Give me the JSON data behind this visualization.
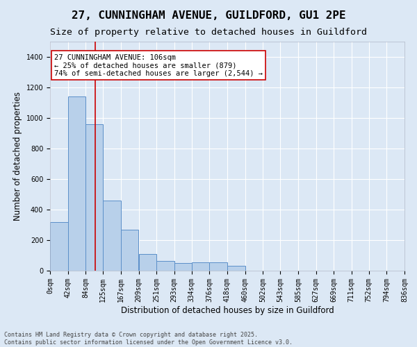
{
  "title_line1": "27, CUNNINGHAM AVENUE, GUILDFORD, GU1 2PE",
  "title_line2": "Size of property relative to detached houses in Guildford",
  "xlabel": "Distribution of detached houses by size in Guildford",
  "ylabel": "Number of detached properties",
  "bar_color": "#b8d0ea",
  "bar_edge_color": "#5b8fc9",
  "background_color": "#dce8f5",
  "grid_color": "#ffffff",
  "red_line_x": 106,
  "annotation_line1": "27 CUNNINGHAM AVENUE: 106sqm",
  "annotation_line2": "← 25% of detached houses are smaller (879)",
  "annotation_line3": "74% of semi-detached houses are larger (2,544) →",
  "annotation_box_color": "#ffffff",
  "annotation_box_edge": "#cc0000",
  "footnote1": "Contains HM Land Registry data © Crown copyright and database right 2025.",
  "footnote2": "Contains public sector information licensed under the Open Government Licence v3.0.",
  "bin_edges": [
    0,
    42,
    84,
    125,
    167,
    209,
    251,
    293,
    334,
    376,
    418,
    460,
    502,
    543,
    585,
    627,
    669,
    711,
    752,
    794,
    836
  ],
  "bar_heights": [
    320,
    1140,
    960,
    460,
    270,
    110,
    65,
    50,
    55,
    55,
    30,
    0,
    0,
    0,
    0,
    0,
    0,
    0,
    0,
    0
  ],
  "ylim": [
    0,
    1500
  ],
  "yticks": [
    0,
    200,
    400,
    600,
    800,
    1000,
    1200,
    1400
  ],
  "title_fontsize": 11.5,
  "subtitle_fontsize": 9.5,
  "axis_label_fontsize": 8.5,
  "tick_fontsize": 7,
  "annotation_fontsize": 7.5,
  "footnote_fontsize": 6
}
